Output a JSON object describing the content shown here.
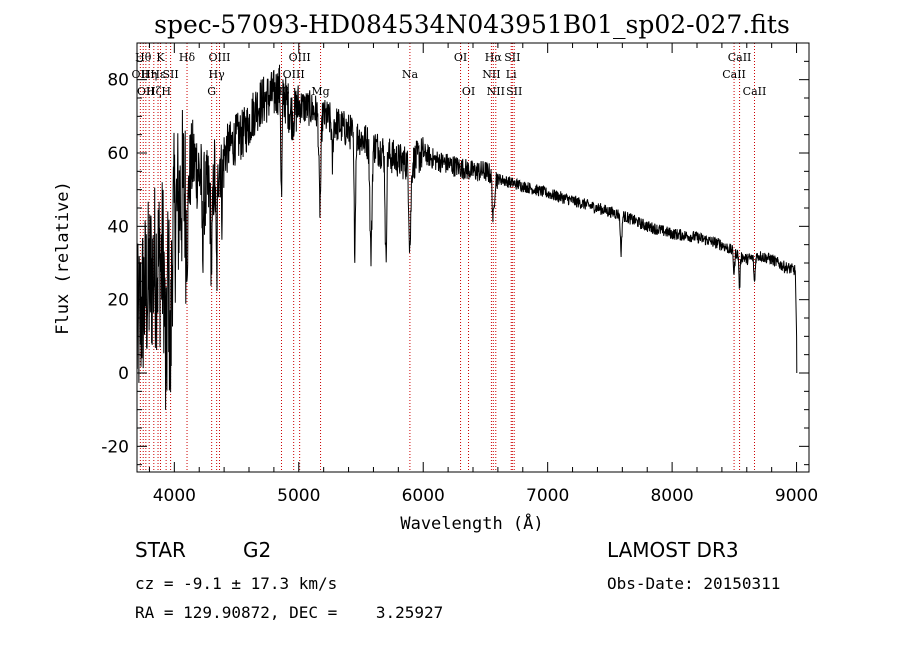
{
  "chart_data": {
    "type": "line",
    "title": "spec-57093-HD084534N043951B01_sp02-027.fits",
    "xlabel": "Wavelength (Å)",
    "ylabel": "Flux (relative)",
    "xlim": [
      3700,
      9100
    ],
    "ylim": [
      -27,
      90
    ],
    "xticks": [
      4000,
      5000,
      6000,
      7000,
      8000,
      9000
    ],
    "yticks": [
      -20,
      0,
      20,
      40,
      60,
      80
    ],
    "line_color": "#000000",
    "marker_color": "#cc0000",
    "spectrum_anchors": {
      "wavelength": [
        3700,
        3750,
        3800,
        3850,
        3900,
        3950,
        4000,
        4050,
        4100,
        4150,
        4200,
        4250,
        4300,
        4350,
        4400,
        4450,
        4500,
        4550,
        4600,
        4650,
        4700,
        4750,
        4800,
        4850,
        4900,
        4950,
        5000,
        5100,
        5200,
        5300,
        5400,
        5500,
        5600,
        5700,
        5800,
        5900,
        6000,
        6100,
        6200,
        6300,
        6400,
        6500,
        6600,
        6700,
        6800,
        6900,
        7000,
        7200,
        7400,
        7600,
        7800,
        8000,
        8200,
        8400,
        8500,
        8600,
        8700,
        8800,
        8900,
        8990
      ],
      "flux": [
        10,
        20,
        25,
        30,
        30,
        35,
        42,
        48,
        52,
        58,
        55,
        48,
        52,
        58,
        60,
        62,
        64,
        65,
        68,
        72,
        74,
        75,
        76,
        78,
        74,
        70,
        73,
        72,
        70,
        68,
        66,
        64,
        62,
        60,
        58,
        57,
        60,
        58,
        57,
        56,
        55,
        55,
        53,
        52,
        51,
        50,
        49,
        47,
        45,
        43,
        40,
        38,
        37,
        35,
        33,
        31,
        32,
        31,
        29,
        28
      ]
    },
    "absorption_features": [
      {
        "wavelength": 3933,
        "depth": 35,
        "width": 8
      },
      {
        "wavelength": 3968,
        "depth": 35,
        "width": 8
      },
      {
        "wavelength": 4102,
        "depth": 18,
        "width": 8
      },
      {
        "wavelength": 4227,
        "depth": 15,
        "width": 5
      },
      {
        "wavelength": 4300,
        "depth": 20,
        "width": 8
      },
      {
        "wavelength": 4340,
        "depth": 30,
        "width": 6
      },
      {
        "wavelength": 4383,
        "depth": 12,
        "width": 5
      },
      {
        "wavelength": 4861,
        "depth": 30,
        "width": 5
      },
      {
        "wavelength": 5170,
        "depth": 25,
        "width": 8
      },
      {
        "wavelength": 5270,
        "depth": 12,
        "width": 5
      },
      {
        "wavelength": 5450,
        "depth": 30,
        "width": 6
      },
      {
        "wavelength": 5580,
        "depth": 30,
        "width": 8
      },
      {
        "wavelength": 5700,
        "depth": 30,
        "width": 6
      },
      {
        "wavelength": 5893,
        "depth": 22,
        "width": 8
      },
      {
        "wavelength": 6563,
        "depth": 12,
        "width": 8
      },
      {
        "wavelength": 7590,
        "depth": 10,
        "width": 6
      },
      {
        "wavelength": 8498,
        "depth": 6,
        "width": 5
      },
      {
        "wavelength": 8542,
        "depth": 9,
        "width": 5
      },
      {
        "wavelength": 8662,
        "depth": 7,
        "width": 5
      }
    ],
    "line_markers": [
      {
        "wavelength": 3727,
        "label": "OII",
        "row": 2
      },
      {
        "wavelength": 3750,
        "label": "Hθ",
        "row": 1
      },
      {
        "wavelength": 3771,
        "label": "OII",
        "row": 3
      },
      {
        "wavelength": 3798,
        "label": "Hη",
        "row": 2
      },
      {
        "wavelength": 3835,
        "label": "Hζ",
        "row": 3
      },
      {
        "wavelength": 3869,
        "label": "Hε",
        "row": 2
      },
      {
        "wavelength": 3889,
        "label": "K",
        "row": 1
      },
      {
        "wavelength": 3934,
        "label": "H",
        "row": 3
      },
      {
        "wavelength": 3970,
        "label": "SII",
        "row": 2
      },
      {
        "wavelength": 4102,
        "label": "Hδ",
        "row": 1
      },
      {
        "wavelength": 4300,
        "label": "G",
        "row": 3
      },
      {
        "wavelength": 4340,
        "label": "Hγ",
        "row": 2
      },
      {
        "wavelength": 4363,
        "label": "OIII",
        "row": 1
      },
      {
        "wavelength": 4861,
        "label": "Hβ",
        "row": 3
      },
      {
        "wavelength": 4959,
        "label": "OIII",
        "row": 2
      },
      {
        "wavelength": 5007,
        "label": "OIII",
        "row": 1
      },
      {
        "wavelength": 5175,
        "label": "Mg",
        "row": 3
      },
      {
        "wavelength": 5893,
        "label": "Na",
        "row": 2
      },
      {
        "wavelength": 6300,
        "label": "OI",
        "row": 1
      },
      {
        "wavelength": 6364,
        "label": "OI",
        "row": 3
      },
      {
        "wavelength": 6548,
        "label": "NII",
        "row": 2
      },
      {
        "wavelength": 6563,
        "label": "Hα",
        "row": 1
      },
      {
        "wavelength": 6583,
        "label": "NII",
        "row": 3
      },
      {
        "wavelength": 6707,
        "label": "Li",
        "row": 2
      },
      {
        "wavelength": 6716,
        "label": "SII",
        "row": 1
      },
      {
        "wavelength": 6731,
        "label": "SII",
        "row": 3
      },
      {
        "wavelength": 8498,
        "label": "CaII",
        "row": 2
      },
      {
        "wavelength": 8542,
        "label": "CaII",
        "row": 1
      },
      {
        "wavelength": 8662,
        "label": "CaII",
        "row": 3
      }
    ]
  },
  "info": {
    "class": "STAR",
    "subclass": "G2",
    "survey": "LAMOST DR3",
    "cz": "cz = -9.1 ± 17.3 km/s",
    "obs_date": "Obs-Date: 20150311",
    "radec": "RA = 129.90872, DEC =    3.25927"
  }
}
